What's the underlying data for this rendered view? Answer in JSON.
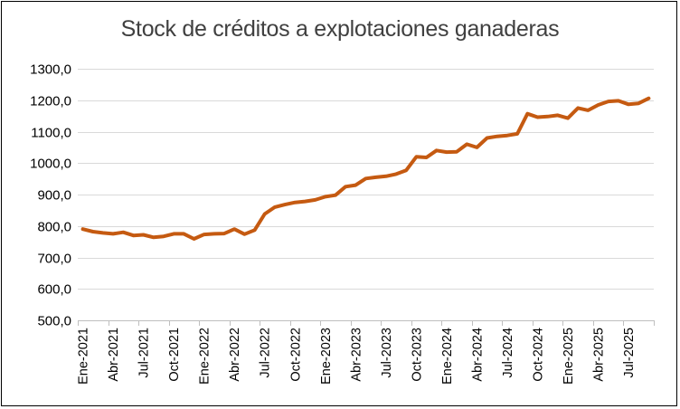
{
  "chart_data": {
    "type": "line",
    "title": "Stock de créditos a explotaciones ganaderas",
    "xlabel": "",
    "ylabel": "",
    "ylim": [
      500,
      1300
    ],
    "yticks": [
      "500,0",
      "600,0",
      "700,0",
      "800,0",
      "900,0",
      "1000,0",
      "1100,0",
      "1200,0",
      "1300,0"
    ],
    "ytick_values": [
      500,
      600,
      700,
      800,
      900,
      1000,
      1100,
      1200,
      1300
    ],
    "xtick_labels": [
      {
        "index": 0,
        "label": "Ene-2021"
      },
      {
        "index": 3,
        "label": "Abr-2021"
      },
      {
        "index": 6,
        "label": "Jul-2021"
      },
      {
        "index": 9,
        "label": "Oct-2021"
      },
      {
        "index": 12,
        "label": "Ene-2022"
      },
      {
        "index": 15,
        "label": "Abr-2022"
      },
      {
        "index": 18,
        "label": "Jul-2022"
      },
      {
        "index": 21,
        "label": "Oct-2022"
      },
      {
        "index": 24,
        "label": "Ene-2023"
      },
      {
        "index": 27,
        "label": "Abr-2023"
      },
      {
        "index": 30,
        "label": "Jul-2023"
      },
      {
        "index": 33,
        "label": "Oct-2023"
      },
      {
        "index": 36,
        "label": "Ene-2024"
      },
      {
        "index": 39,
        "label": "Abr-2024"
      },
      {
        "index": 42,
        "label": "Jul-2024"
      },
      {
        "index": 45,
        "label": "Oct-2024"
      },
      {
        "index": 48,
        "label": "Ene-2025"
      },
      {
        "index": 51,
        "label": "Abr-2025"
      },
      {
        "index": 54,
        "label": "Jul-2025"
      }
    ],
    "grid": "horizontal",
    "legend": "none",
    "series": [
      {
        "color": "#C55A11",
        "values": [
          790,
          782,
          778,
          775,
          780,
          770,
          772,
          764,
          767,
          775,
          775,
          759,
          773,
          775,
          776,
          790,
          774,
          787,
          838,
          860,
          868,
          875,
          878,
          883,
          893,
          898,
          925,
          930,
          951,
          955,
          958,
          965,
          977,
          1020,
          1018,
          1040,
          1035,
          1036,
          1060,
          1050,
          1080,
          1085,
          1088,
          1093,
          1157,
          1146,
          1148,
          1152,
          1143,
          1175,
          1168,
          1185,
          1196,
          1198,
          1187,
          1190,
          1206
        ]
      }
    ]
  }
}
